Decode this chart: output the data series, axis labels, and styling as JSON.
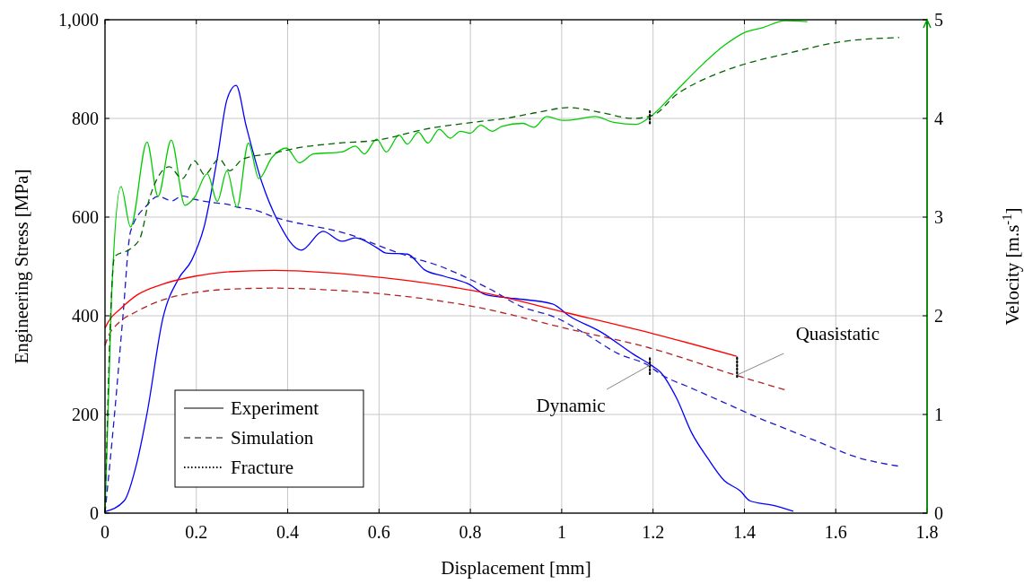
{
  "chart_data": {
    "type": "line",
    "xlabel": "Displacement [mm]",
    "ylabel": "Engineering Stress [MPa]",
    "y2label": "Velocity [m.s$^{-1}$]",
    "xlim": [
      0,
      1.8
    ],
    "xticks": [
      0,
      0.2,
      0.4,
      0.6,
      0.8,
      1,
      1.2,
      1.4,
      1.6,
      1.8
    ],
    "ylim": [
      0,
      1000
    ],
    "yticks": [
      0,
      200,
      400,
      600,
      800,
      {
        "value": 1000,
        "label": "1,000"
      }
    ],
    "y2lim": [
      0,
      5
    ],
    "y2ticks": [
      0,
      1,
      2,
      3,
      4,
      5
    ],
    "grid": true,
    "legend": "bottom left",
    "marker": "none",
    "annotations": [
      {
        "text": "Dynamic",
        "x": 1.193,
        "y": 300
      },
      {
        "text": "Quasistatic",
        "x": 1.384,
        "y": 280
      }
    ],
    "series": [
      {
        "name": "Experiment",
        "color": "#000000",
        "line_style": "solid"
      },
      {
        "name": "Simulation",
        "color": "#000000",
        "line_style": "dashed"
      },
      {
        "color": "#0000ff",
        "line_style": "solid",
        "x": [
          0,
          0.042,
          0.07,
          0.092,
          0.127,
          0.161,
          0.19,
          0.218,
          0.246,
          0.267,
          0.287,
          0.309,
          0.344,
          0.379,
          0.43,
          0.477,
          0.519,
          0.548,
          0.595,
          0.616,
          0.662,
          0.7,
          0.743,
          0.799,
          0.833,
          0.897,
          0.98,
          1.016,
          1.086,
          1.157,
          1.199,
          1.216,
          1.251,
          1.285,
          1.32,
          1.356,
          1.391,
          1.412,
          1.461,
          1.507
        ],
        "values": [
          3,
          25,
          103,
          202,
          396,
          475,
          513,
          584,
          720,
          838,
          867,
          785,
          669,
          591,
          533,
          571,
          551,
          558,
          538,
          527,
          525,
          493,
          480,
          463,
          443,
          435,
          424,
          400,
          367,
          322,
          298,
          286,
          234,
          162,
          111,
          66,
          45,
          25,
          16,
          4
        ]
      },
      {
        "color": "#1a1acc",
        "line_style": "dashed",
        "x": [
          0,
          0.021,
          0.039,
          0.056,
          0.092,
          0.116,
          0.147,
          0.169,
          0.196,
          0.232,
          0.267,
          0.291,
          0.33,
          0.371,
          0.442,
          0.477,
          0.534,
          0.611,
          0.666,
          0.735,
          0.792,
          0.841,
          0.911,
          0.988,
          1.051,
          1.122,
          1.192,
          1.216,
          1.285,
          1.356,
          1.426,
          1.496,
          1.566,
          1.637,
          1.739
        ],
        "values": [
          0,
          202,
          396,
          571,
          624,
          642,
          633,
          643,
          636,
          630,
          626,
          620,
          614,
          600,
          584,
          578,
          565,
          538,
          520,
          500,
          477,
          455,
          419,
          396,
          364,
          324,
          298,
          282,
          253,
          224,
          195,
          169,
          143,
          116,
          95
        ]
      },
      {
        "color": "#ff0000",
        "line_style": "solid",
        "x": [
          0,
          0.008,
          0.035,
          0.07,
          0.126,
          0.196,
          0.267,
          0.371,
          0.477,
          0.611,
          0.805,
          1.016,
          1.199,
          1.383
        ],
        "values": [
          375,
          389,
          415,
          442,
          464,
          480,
          489,
          492,
          488,
          477,
          451,
          405,
          364,
          318
        ]
      },
      {
        "color": "#b22222",
        "line_style": "dashed",
        "x": [
          0,
          0.008,
          0.028,
          0.07,
          0.126,
          0.196,
          0.302,
          0.371,
          0.477,
          0.611,
          0.805,
          1.016,
          1.192,
          1.383,
          1.489
        ],
        "values": [
          340,
          360,
          384,
          409,
          432,
          447,
          455,
          456,
          453,
          444,
          419,
          373,
          335,
          279,
          250
        ]
      },
      {
        "color": "#00cc00",
        "line_style": "solid",
        "axis": "y2",
        "x": [
          0,
          0.014,
          0.035,
          0.056,
          0.092,
          0.116,
          0.145,
          0.175,
          0.196,
          0.224,
          0.246,
          0.267,
          0.289,
          0.314,
          0.337,
          0.365,
          0.397,
          0.426,
          0.456,
          0.519,
          0.548,
          0.568,
          0.595,
          0.616,
          0.644,
          0.662,
          0.686,
          0.707,
          0.732,
          0.756,
          0.778,
          0.799,
          0.823,
          0.848,
          0.869,
          0.915,
          0.939,
          0.967,
          1.002,
          1.03,
          1.073,
          1.114,
          1.163,
          1.192,
          1.251,
          1.3,
          1.356,
          1.4,
          1.44,
          1.489,
          1.538
        ],
        "values": [
          0,
          2.15,
          3.31,
          2.9,
          3.76,
          3.21,
          3.78,
          3.12,
          3.2,
          3.44,
          3.16,
          3.47,
          3.1,
          3.75,
          3.39,
          3.6,
          3.7,
          3.55,
          3.64,
          3.66,
          3.72,
          3.64,
          3.79,
          3.66,
          3.83,
          3.74,
          3.86,
          3.75,
          3.89,
          3.8,
          3.87,
          3.85,
          3.93,
          3.87,
          3.92,
          3.95,
          3.91,
          4.02,
          3.98,
          3.99,
          4.02,
          3.96,
          3.94,
          4.01,
          4.28,
          4.51,
          4.74,
          4.87,
          4.92,
          4.99,
          4.98
        ]
      },
      {
        "color": "#006400",
        "line_style": "dashed",
        "axis": "y2",
        "x": [
          0,
          0.021,
          0.056,
          0.077,
          0.098,
          0.141,
          0.169,
          0.196,
          0.218,
          0.25,
          0.273,
          0.302,
          0.371,
          0.42,
          0.513,
          0.597,
          0.7,
          0.805,
          0.876,
          0.946,
          1.016,
          1.086,
          1.157,
          1.199,
          1.251,
          1.328,
          1.4,
          1.496,
          1.602,
          1.739
        ],
        "values": [
          0,
          2.6,
          2.68,
          2.79,
          3.2,
          3.51,
          3.39,
          3.57,
          3.43,
          3.59,
          3.47,
          3.59,
          3.65,
          3.7,
          3.75,
          3.78,
          3.89,
          3.96,
          4,
          4.06,
          4.11,
          4.06,
          4,
          4.03,
          4.24,
          4.43,
          4.55,
          4.66,
          4.77,
          4.82
        ]
      },
      {
        "name": "Fracture",
        "color": "#000000",
        "line_style": "dotted",
        "x": [
          1.193,
          1.193,
          1.29,
          1.384,
          1.384
        ],
        "values": [
          282,
          315,
          null,
          276,
          319
        ]
      },
      {
        "color": "#000000",
        "line_style": "dotted",
        "axis": "y2",
        "x": [
          1.193,
          1.193
        ],
        "values": [
          3.95,
          4.09
        ]
      }
    ]
  }
}
